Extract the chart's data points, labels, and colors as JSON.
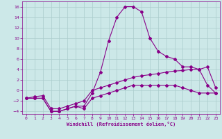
{
  "xlabel": "Windchill (Refroidissement éolien,°C)",
  "background_color": "#cce8e8",
  "grid_color": "#aacccc",
  "line_color": "#880088",
  "xlim": [
    -0.5,
    23.5
  ],
  "ylim": [
    -4.5,
    17.0
  ],
  "xticks": [
    0,
    1,
    2,
    3,
    4,
    5,
    6,
    7,
    8,
    9,
    10,
    11,
    12,
    13,
    14,
    15,
    16,
    17,
    18,
    19,
    20,
    21,
    22,
    23
  ],
  "yticks": [
    -4,
    -2,
    0,
    2,
    4,
    6,
    8,
    10,
    12,
    14,
    16
  ],
  "line1_x": [
    0,
    1,
    2,
    3,
    4,
    5,
    6,
    7,
    8,
    9,
    10,
    11,
    12,
    13,
    14,
    15,
    16,
    17,
    18,
    19,
    20,
    21,
    22,
    23
  ],
  "line1_y": [
    -1.5,
    -1.5,
    -1.5,
    -4.0,
    -4.0,
    -3.5,
    -3.0,
    -3.0,
    -0.5,
    3.5,
    9.5,
    14.0,
    16.0,
    16.0,
    15.0,
    10.0,
    7.5,
    6.5,
    6.0,
    4.5,
    4.5,
    4.0,
    1.0,
    -0.5
  ],
  "line2_x": [
    0,
    1,
    2,
    3,
    4,
    5,
    6,
    7,
    8,
    9,
    10,
    11,
    12,
    13,
    14,
    15,
    16,
    17,
    18,
    19,
    20,
    21,
    22,
    23
  ],
  "line2_y": [
    -1.5,
    -1.2,
    -1.0,
    -3.5,
    -3.5,
    -3.0,
    -2.5,
    -2.0,
    0.0,
    0.5,
    1.0,
    1.5,
    2.0,
    2.5,
    2.8,
    3.0,
    3.2,
    3.5,
    3.7,
    3.8,
    4.0,
    4.0,
    4.5,
    0.5
  ],
  "line3_x": [
    0,
    1,
    2,
    3,
    4,
    5,
    6,
    7,
    8,
    9,
    10,
    11,
    12,
    13,
    14,
    15,
    16,
    17,
    18,
    19,
    20,
    21,
    22,
    23
  ],
  "line3_y": [
    -1.5,
    -1.5,
    -1.5,
    -4.0,
    -4.0,
    -3.5,
    -3.0,
    -3.5,
    -1.5,
    -1.0,
    -0.5,
    0.0,
    0.5,
    1.0,
    1.0,
    1.0,
    1.0,
    1.0,
    1.0,
    0.5,
    0.0,
    -0.5,
    -0.5,
    -0.5
  ]
}
